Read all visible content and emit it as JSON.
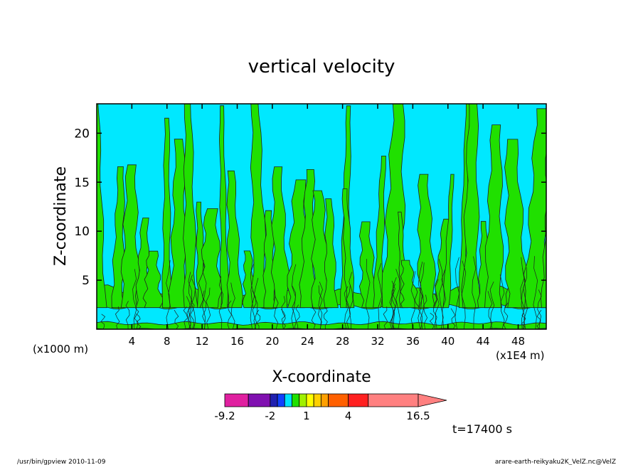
{
  "chart_data": {
    "type": "heatmap",
    "title": "vertical velocity",
    "xlabel": "X-coordinate",
    "ylabel": "Z-coordinate",
    "x_unit_left": "(x1000 m)",
    "x_unit_right": "(x1E4 m)",
    "xlim": [
      0,
      51.2
    ],
    "ylim": [
      0,
      23
    ],
    "x_ticks": [
      4,
      8,
      12,
      16,
      20,
      24,
      28,
      32,
      36,
      40,
      44,
      48
    ],
    "y_ticks": [
      5,
      10,
      15,
      20
    ],
    "x_tick_labels": [
      "4",
      "8",
      "12",
      "16",
      "20",
      "24",
      "28",
      "32",
      "36",
      "40",
      "44",
      "48"
    ],
    "y_tick_labels": [
      "5",
      "10",
      "15",
      "20"
    ],
    "colorbar": {
      "bounds": [
        -9.2,
        -5,
        -2,
        -1.2,
        -0.5,
        0,
        0.5,
        1,
        1.5,
        2,
        2.5,
        4,
        6,
        16.5
      ],
      "colors": [
        "#e020a0",
        "#8010b0",
        "#2020b0",
        "#1040ff",
        "#00e0ff",
        "#20e000",
        "#a0f000",
        "#ffff00",
        "#ffd000",
        "#ffa000",
        "#ff6000",
        "#ff2020",
        "#ff8080"
      ],
      "tick_values": [
        -9.2,
        -2,
        1,
        4,
        16.5
      ],
      "tick_labels": [
        "-9.2",
        "-2",
        "1",
        "4",
        "16.5"
      ]
    },
    "field_colors": {
      "negative": "#00e8ff",
      "positive": "#20e000",
      "contour": "#202020"
    },
    "time_label": "t=17400 s"
  },
  "footer": {
    "left": "/usr/bin/gpview   2010-11-09",
    "right": "arare-earth-reikyaku2K_VelZ.nc@VelZ"
  }
}
